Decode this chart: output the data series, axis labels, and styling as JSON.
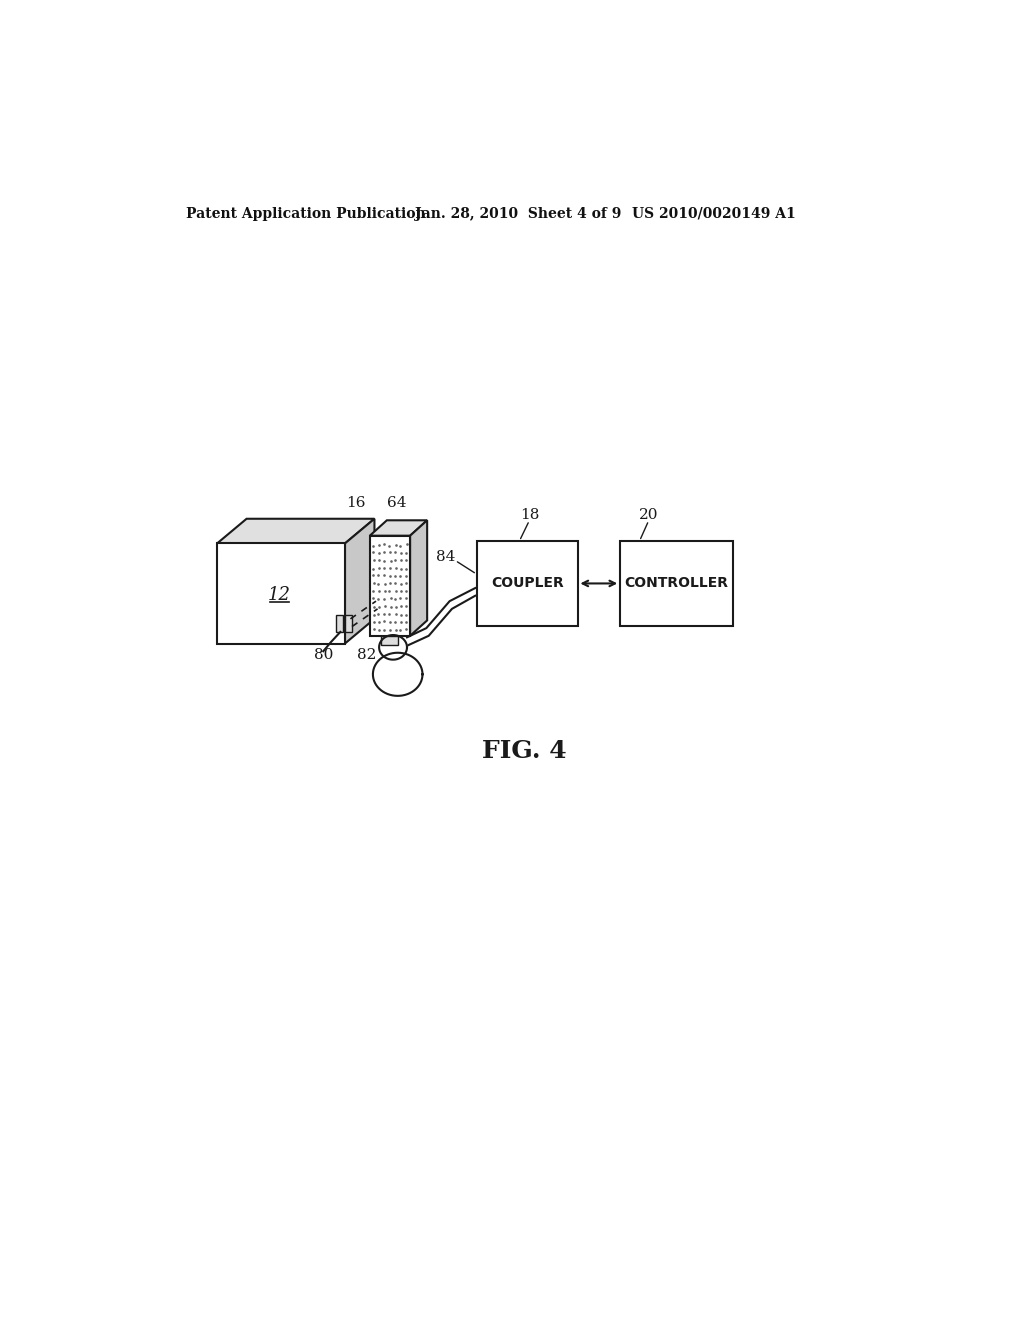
{
  "bg_color": "#ffffff",
  "header_left": "Patent Application Publication",
  "header_mid": "Jan. 28, 2010  Sheet 4 of 9",
  "header_right": "US 2010/0020149 A1",
  "fig_label": "FIG. 4",
  "line_color": "#1a1a1a",
  "font_size_header": 10,
  "font_size_label": 11,
  "font_size_fig": 18
}
